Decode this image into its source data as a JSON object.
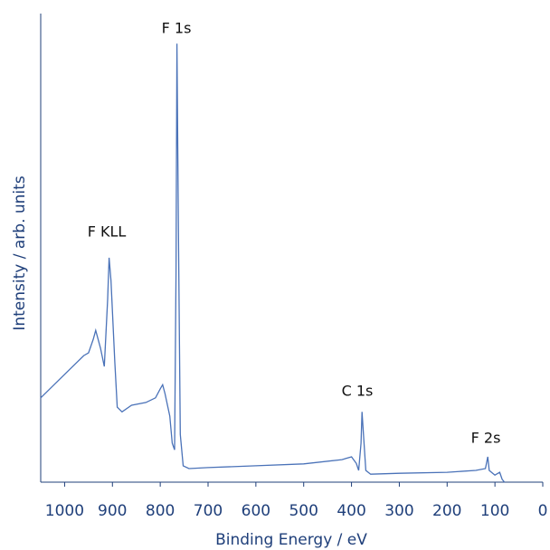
{
  "chart_data": {
    "type": "line",
    "xlabel": "Binding Energy / eV",
    "ylabel": "Intensity / arb. units",
    "annotations": [
      "F 1s",
      "F KLL",
      "C 1s",
      "F 2s"
    ],
    "x": [
      1050,
      1020,
      990,
      960,
      950,
      940,
      935,
      925,
      917,
      910,
      907,
      903,
      895,
      890,
      880,
      860,
      830,
      810,
      800,
      795,
      790,
      780,
      775,
      770,
      767,
      765,
      762,
      758,
      752,
      740,
      700,
      600,
      500,
      420,
      400,
      390,
      385,
      380,
      378,
      375,
      370,
      360,
      300,
      200,
      140,
      120,
      115,
      112,
      100,
      90,
      85,
      80
    ],
    "series": [
      {
        "color": "#4a72b8",
        "values": [
          18,
          21,
          24,
          27,
          27.6,
          30.5,
          32.4,
          28.6,
          24.7,
          39,
          47.9,
          43,
          25.7,
          16,
          15,
          16.4,
          17,
          18,
          19.9,
          20.8,
          18.9,
          14.1,
          8.3,
          6.9,
          45,
          93.6,
          54.6,
          10.2,
          3.5,
          2.9,
          3.1,
          3.5,
          3.9,
          4.8,
          5.4,
          4,
          2.5,
          8.3,
          15,
          10.2,
          2.5,
          1.7,
          1.9,
          2.1,
          2.5,
          2.9,
          5.4,
          2.5,
          1.5,
          2.1,
          0.6,
          0
        ]
      }
    ],
    "xlim": [
      1050,
      0
    ],
    "xticks": [
      1000,
      900,
      800,
      700,
      600,
      500,
      400,
      300,
      200,
      100,
      0
    ],
    "ylim": [
      0,
      100
    ]
  }
}
